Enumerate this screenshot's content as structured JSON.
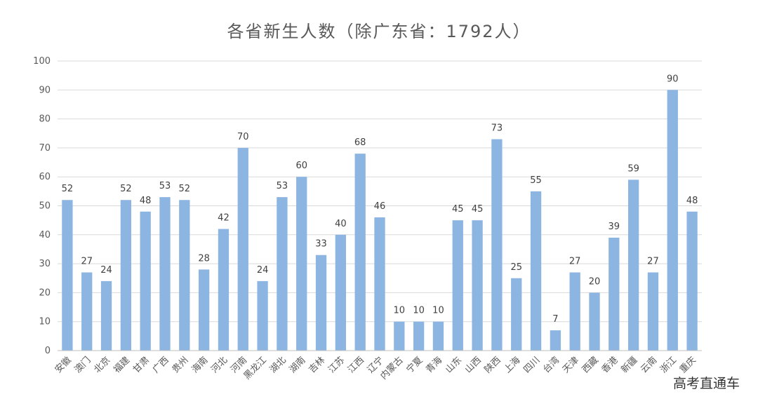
{
  "chart_data": {
    "type": "bar",
    "title": "各省新生人数（除广东省：1792人）",
    "xlabel": "",
    "ylabel": "",
    "ylim": [
      0,
      100
    ],
    "yticks": [
      0,
      10,
      20,
      30,
      40,
      50,
      60,
      70,
      80,
      90,
      100
    ],
    "grid": true,
    "bar_color": "#8db5e2",
    "categories": [
      "安徽",
      "澳门",
      "北京",
      "福建",
      "甘肃",
      "广西",
      "贵州",
      "海南",
      "河北",
      "河南",
      "黑龙江",
      "湖北",
      "湖南",
      "吉林",
      "江苏",
      "江西",
      "辽宁",
      "内蒙古",
      "宁夏",
      "青海",
      "山东",
      "山西",
      "陕西",
      "上海",
      "四川",
      "台湾",
      "天津",
      "西藏",
      "香港",
      "新疆",
      "云南",
      "浙江",
      "重庆"
    ],
    "values": [
      52,
      27,
      24,
      52,
      48,
      53,
      52,
      28,
      42,
      70,
      24,
      53,
      60,
      33,
      40,
      68,
      46,
      10,
      10,
      10,
      45,
      45,
      73,
      25,
      55,
      7,
      27,
      20,
      39,
      59,
      27,
      90,
      48
    ]
  },
  "watermark": "高考直通车"
}
